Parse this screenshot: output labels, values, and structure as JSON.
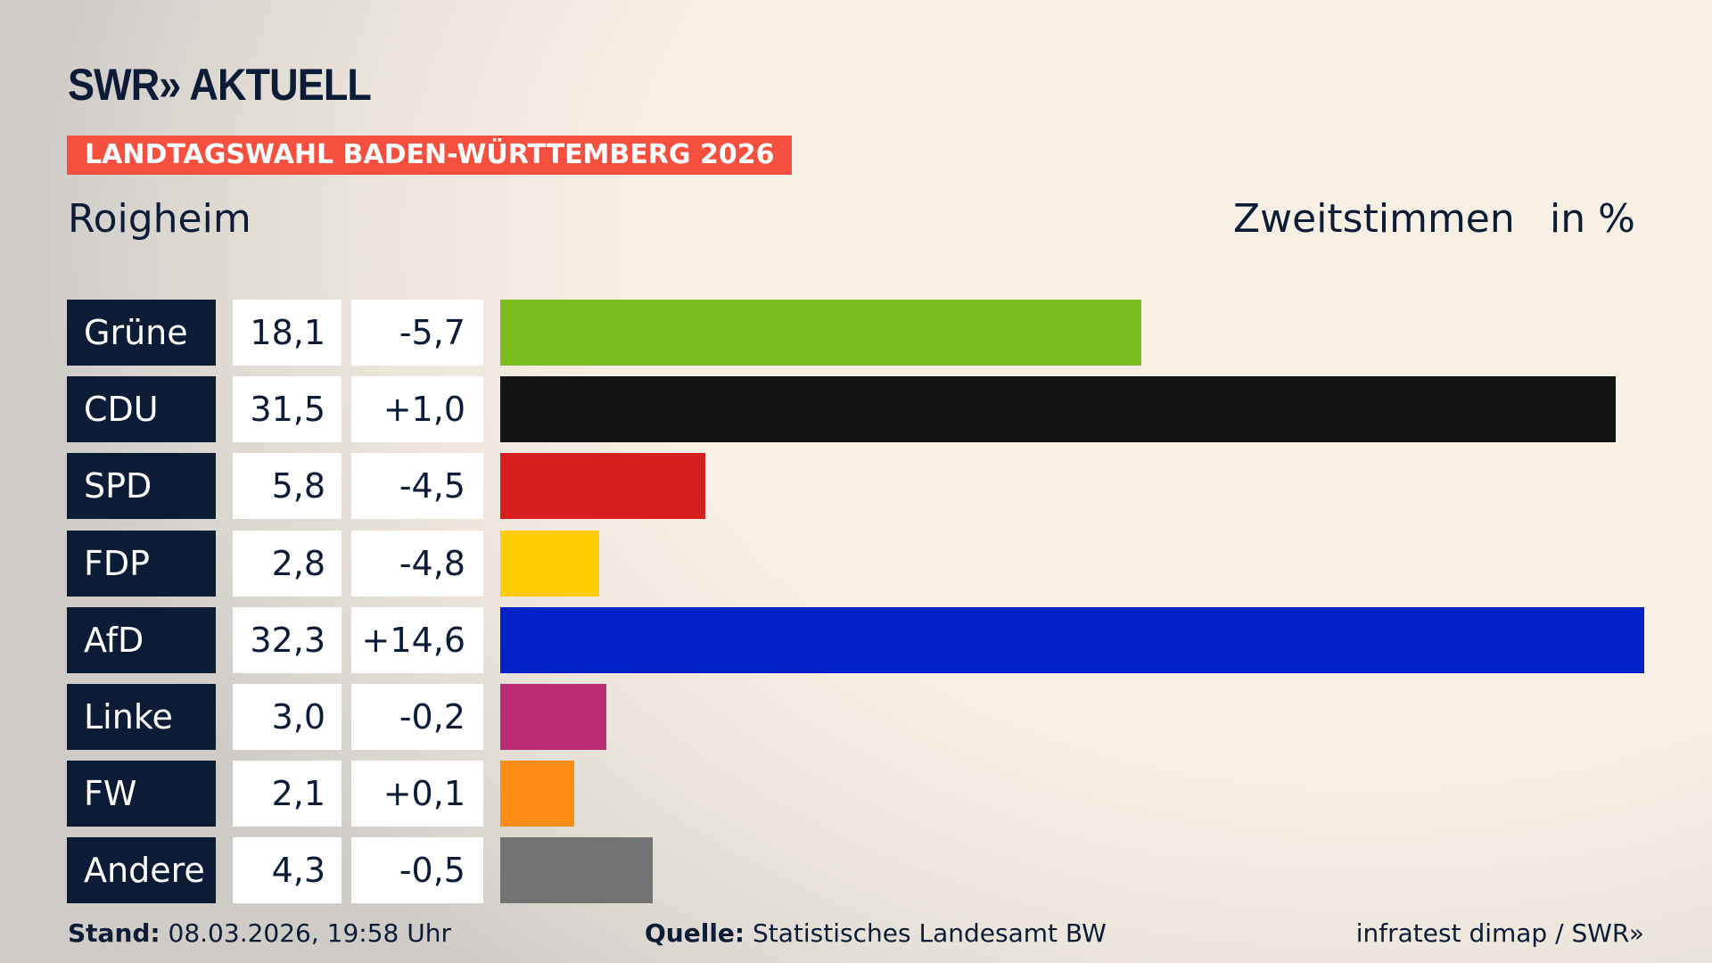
{
  "header": {
    "logo": "SWR» AKTUELL",
    "banner": "LANDTAGSWAHL BADEN-WÜRTTEMBERG 2026",
    "place": "Roigheim",
    "vote_type": "Zweitstimmen",
    "unit": "in %"
  },
  "chart_data": {
    "type": "bar",
    "orientation": "horizontal",
    "categories": [
      "Grüne",
      "CDU",
      "SPD",
      "FDP",
      "AfD",
      "Linke",
      "FW",
      "Andere"
    ],
    "values": [
      18.1,
      31.5,
      5.8,
      2.8,
      32.3,
      3.0,
      2.1,
      4.3
    ],
    "value_labels": [
      "18,1",
      "31,5",
      "5,8",
      "2,8",
      "32,3",
      "3,0",
      "2,1",
      "4,3"
    ],
    "diff_labels": [
      "-5,7",
      "+1,0",
      "-4,5",
      "-4,8",
      "+14,6",
      "-0,2",
      "+0,1",
      "-0,5"
    ],
    "colors": [
      "#7bbd1f",
      "#141414",
      "#d71f1f",
      "#ffcc00",
      "#0020c8",
      "#bb2c77",
      "#ff8c14",
      "#737373"
    ],
    "title": "Zweitstimmen",
    "ylabel": "in %",
    "grid": false
  },
  "footer": {
    "stand_label": "Stand:",
    "stand_value": "08.03.2026, 19:58 Uhr",
    "source_label": "Quelle:",
    "source_value": "Statistisches Landesamt BW",
    "credit": "infratest dimap / SWR»"
  }
}
